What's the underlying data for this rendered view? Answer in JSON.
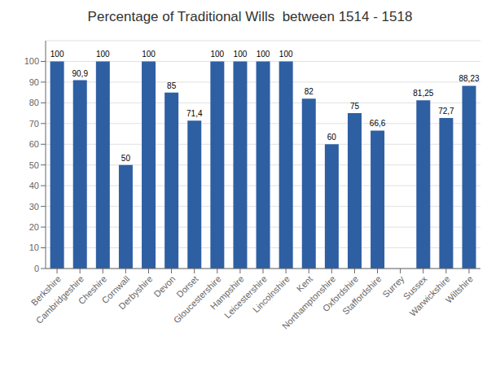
{
  "chart_data": {
    "type": "bar",
    "title": "Percentage of Traditional Wills  between 1514 - 1518",
    "categories": [
      "Berkshire",
      "Cambridgeshire",
      "Cheshire",
      "Cornwall",
      "Derbyshire",
      "Devon",
      "Dorset",
      "Gloucestershire",
      "Hampshire",
      "Leicestershire",
      "Lincolnshire",
      "Kent",
      "Northamptonshire",
      "Oxfordshire",
      "Staffordshire",
      "Surrey",
      "Sussex",
      "Warwickshire",
      "Wiltshire"
    ],
    "values": [
      100,
      90.9,
      100,
      50,
      100,
      85,
      71.4,
      100,
      100,
      100,
      100,
      82,
      60,
      75,
      66.6,
      0,
      81.25,
      72.7,
      88.23
    ],
    "value_labels": [
      "100",
      "90,9",
      "100",
      "50",
      "100",
      "85",
      "71,4",
      "100",
      "100",
      "100",
      "100",
      "82",
      "60",
      "75",
      "66,6",
      null,
      "81,25",
      "72,7",
      "88,23"
    ],
    "data_labels": true,
    "color": "#2E5FA3",
    "ylim": [
      0,
      110
    ],
    "yticks": [
      0,
      10,
      20,
      30,
      40,
      50,
      60,
      70,
      80,
      90,
      100
    ],
    "grid": true
  }
}
